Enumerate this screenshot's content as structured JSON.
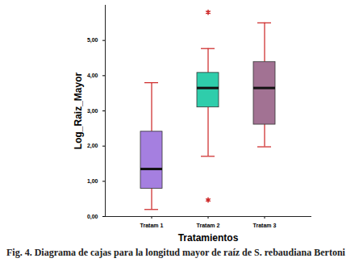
{
  "chart_data": {
    "type": "box",
    "caption": "Fig. 4. Diagrama de cajas para la longitud mayor de raíz de S. rebaudiana Bertoni",
    "xlabel": "Tratamientos",
    "ylabel": "Log_Raiz_Mayor",
    "categories": [
      "Tratam 1",
      "Tratam 2",
      "Tratam 3"
    ],
    "whisker_low": [
      0.2,
      1.71,
      1.98
    ],
    "q1": [
      0.79,
      3.1,
      2.61
    ],
    "median": [
      1.35,
      3.65,
      3.65
    ],
    "q3": [
      2.41,
      4.08,
      4.39
    ],
    "whisker_high": [
      3.8,
      4.77,
      5.5
    ],
    "outliers": [
      [],
      [
        5.8,
        0.47
      ],
      []
    ],
    "colors": [
      "#a57fe0",
      "#2fcdab",
      "#a27293"
    ],
    "whisker_color": "#cc2222",
    "ylim": [
      0,
      6
    ],
    "yticks": [
      {
        "value": 0,
        "label": "0,00"
      },
      {
        "value": 1,
        "label": "1,00"
      },
      {
        "value": 2,
        "label": "2,00"
      },
      {
        "value": 3,
        "label": "3,00"
      },
      {
        "value": 4,
        "label": "4,00"
      },
      {
        "value": 5,
        "label": "5,00"
      }
    ],
    "grid": false
  }
}
